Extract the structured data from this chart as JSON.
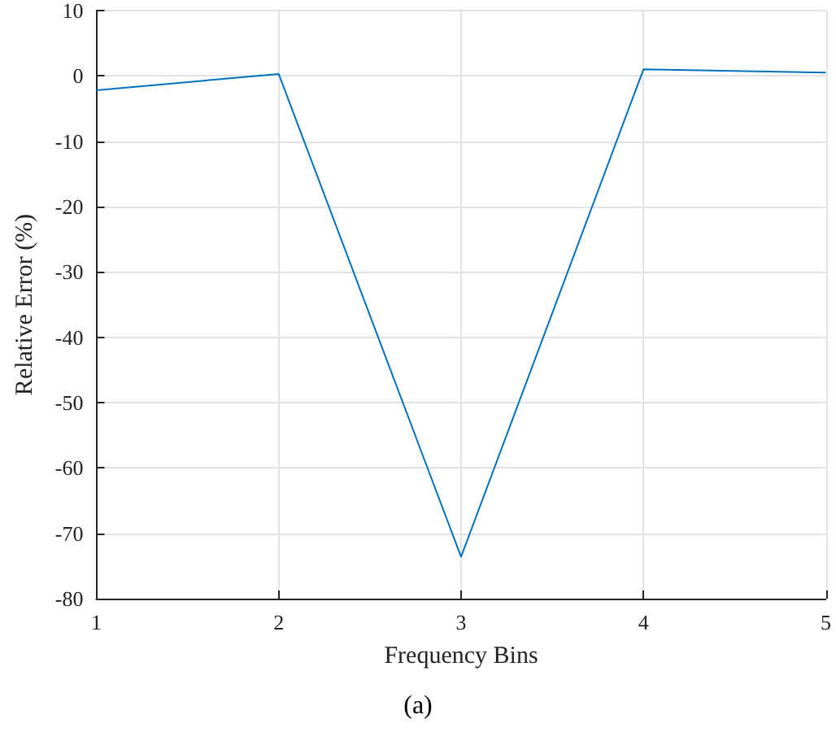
{
  "chart_data": {
    "type": "line",
    "xlabel": "Frequency Bins",
    "ylabel": "Relative Error (%)",
    "annotations": [
      "(a)"
    ],
    "x": [
      1,
      2,
      3,
      4,
      5
    ],
    "series": [
      {
        "color": "#0072bd",
        "values": [
          -2.2,
          0.3,
          -73.6,
          1.0,
          0.5
        ]
      }
    ],
    "xlim": [
      1,
      5
    ],
    "xticks": [
      1,
      2,
      3,
      4,
      5
    ],
    "ylim": [
      -80,
      10
    ],
    "yticks": [
      -80,
      -70,
      -60,
      -50,
      -40,
      -30,
      -20,
      -10,
      0,
      10
    ],
    "grid": true,
    "marker": "none",
    "line_style": "solid"
  }
}
